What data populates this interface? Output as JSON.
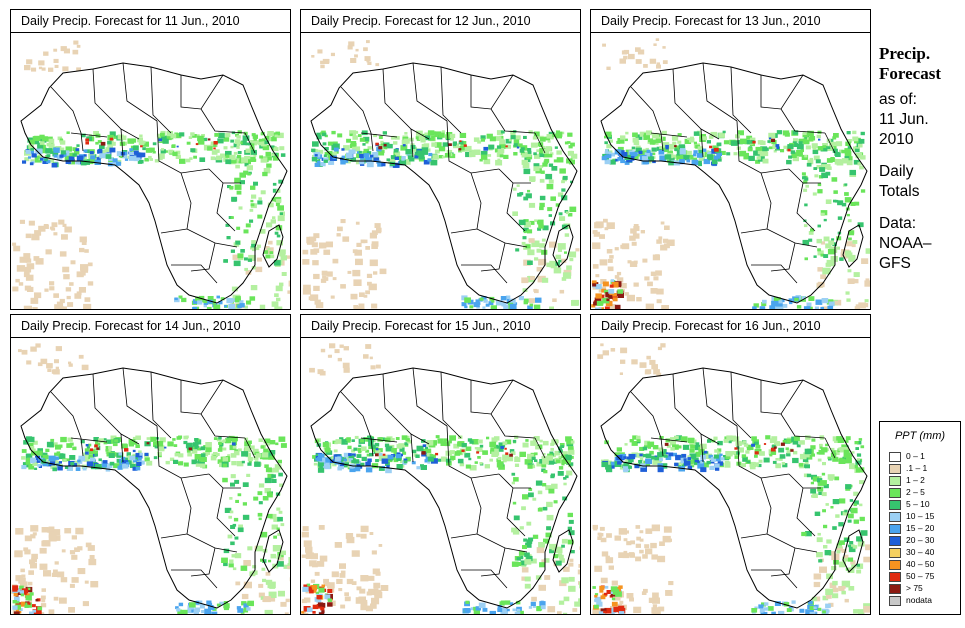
{
  "panels": [
    {
      "title": "Daily Precip. Forecast for  11 Jun., 2010"
    },
    {
      "title": "Daily Precip. Forecast for  12 Jun., 2010"
    },
    {
      "title": "Daily Precip. Forecast for  13 Jun., 2010"
    },
    {
      "title": "Daily Precip. Forecast for  14 Jun., 2010"
    },
    {
      "title": "Daily Precip. Forecast for  15 Jun., 2010"
    },
    {
      "title": "Daily Precip. Forecast for  16 Jun., 2010"
    }
  ],
  "side": {
    "line1": "Precip.",
    "line2": "Forecast",
    "line3": "as of:",
    "line4": "11 Jun.",
    "line5": "2010",
    "line6": "Daily",
    "line7": "Totals",
    "line8": "Data:",
    "line9": "NOAA–",
    "line10": "GFS"
  },
  "legend": {
    "title": "PPT (mm)",
    "items": [
      {
        "label": "0 – 1",
        "color": "#ffffff"
      },
      {
        "label": ".1 – 1",
        "color": "#e8d3b4"
      },
      {
        "label": "1 – 2",
        "color": "#b4f0a0"
      },
      {
        "label": "2 – 5",
        "color": "#6ae55a"
      },
      {
        "label": "5 – 10",
        "color": "#36c46e"
      },
      {
        "label": "10 – 15",
        "color": "#9cd0f4"
      },
      {
        "label": "15 – 20",
        "color": "#4aa4ee"
      },
      {
        "label": "20 – 30",
        "color": "#1e5fd8"
      },
      {
        "label": "30 – 40",
        "color": "#f4d060"
      },
      {
        "label": "40 – 50",
        "color": "#f59320"
      },
      {
        "label": "50 – 75",
        "color": "#e02a10"
      },
      {
        "label": "> 75",
        "color": "#8c1a12"
      },
      {
        "label": "nodata",
        "color": "#c8c8c8"
      }
    ]
  }
}
